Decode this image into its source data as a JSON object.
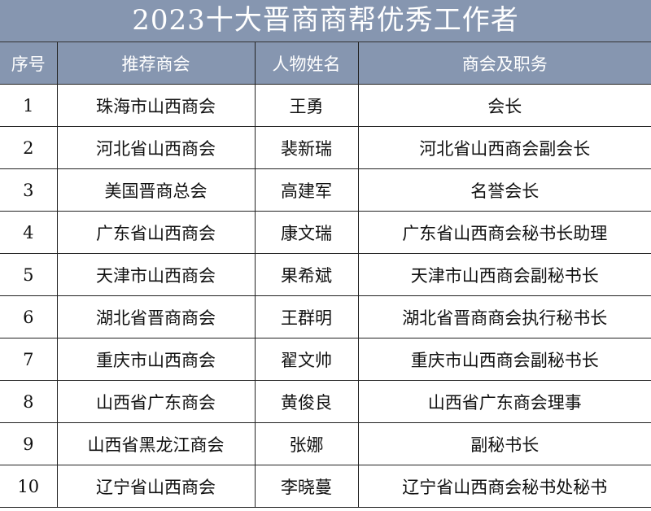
{
  "title": "2023十大晋商商帮优秀工作者",
  "colors": {
    "header_bg": "#8696b0",
    "header_text": "#ffffff"
  },
  "columns": [
    "序号",
    "推荐商会",
    "人物姓名",
    "商会及职务"
  ],
  "rows": [
    [
      "1",
      "珠海市山西商会",
      "王勇",
      "会长"
    ],
    [
      "2",
      "河北省山西商会",
      "裴新瑞",
      "河北省山西商会副会长"
    ],
    [
      "3",
      "美国晋商总会",
      "高建军",
      "名誉会长"
    ],
    [
      "4",
      "广东省山西商会",
      "康文瑞",
      "广东省山西商会秘书长助理"
    ],
    [
      "5",
      "天津市山西商会",
      "果希斌",
      "天津市山西商会副秘书长"
    ],
    [
      "6",
      "湖北省晋商商会",
      "王群明",
      "湖北省晋商商会执行秘书长"
    ],
    [
      "7",
      "重庆市山西商会",
      "翟文帅",
      "重庆市山西商会副秘书长"
    ],
    [
      "8",
      "山西省广东商会",
      "黄俊良",
      "山西省广东商会理事"
    ],
    [
      "9",
      "山西省黑龙江商会",
      "张娜",
      "副秘书长"
    ],
    [
      "10",
      "辽宁省山西商会",
      "李晓蔓",
      "辽宁省山西商会秘书处秘书"
    ]
  ]
}
